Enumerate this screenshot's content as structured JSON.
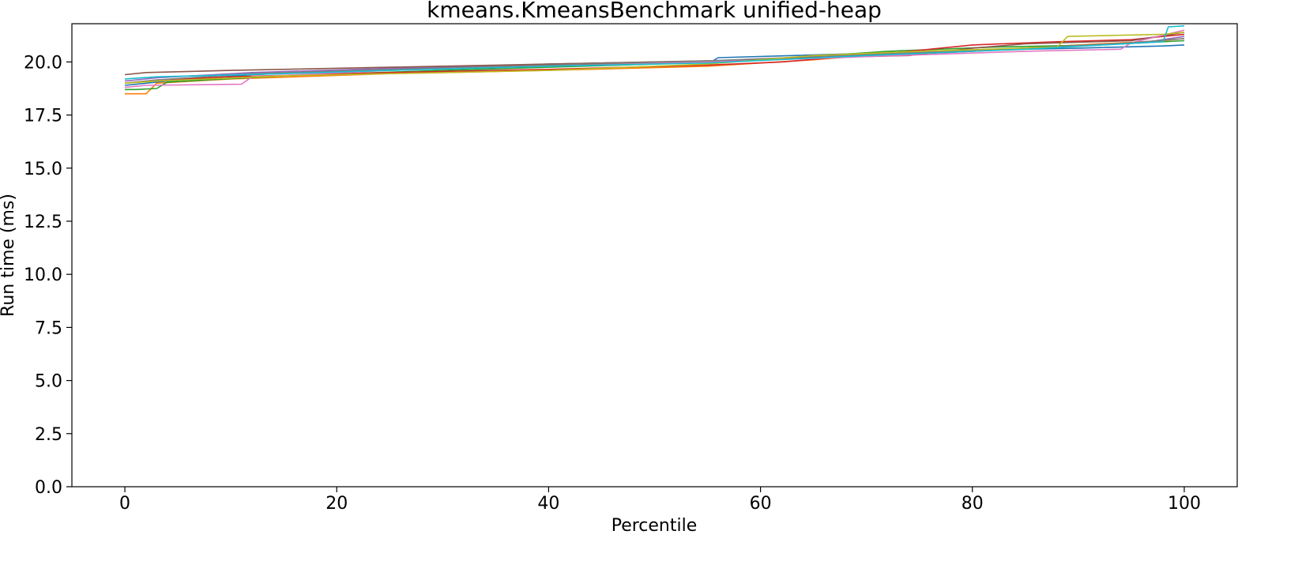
{
  "chart_data": {
    "type": "line",
    "title": "kmeans.KmeansBenchmark unified-heap",
    "xlabel": "Percentile",
    "ylabel": "Run time (ms)",
    "xlim": [
      -5,
      105
    ],
    "ylim": [
      0,
      21.8
    ],
    "xticks": [
      0,
      20,
      40,
      60,
      80,
      100
    ],
    "yticks": [
      0.0,
      2.5,
      5.0,
      7.5,
      10.0,
      12.5,
      15.0,
      17.5,
      20.0
    ],
    "ytick_labels": [
      "0.0",
      "2.5",
      "5.0",
      "7.5",
      "10.0",
      "12.5",
      "15.0",
      "17.5",
      "20.0"
    ],
    "xtick_labels": [
      "0",
      "20",
      "40",
      "60",
      "80",
      "100"
    ],
    "grid": false,
    "legend": "none",
    "series": [
      {
        "color": "#1f77b4",
        "x": [
          0,
          2,
          4,
          12,
          25,
          40,
          55.5,
          56,
          70,
          80,
          90,
          98,
          100
        ],
        "y": [
          18.9,
          19.0,
          19.1,
          19.4,
          19.65,
          19.9,
          20.05,
          20.2,
          20.4,
          20.55,
          20.65,
          20.75,
          20.8
        ]
      },
      {
        "color": "#ff7f0e",
        "x": [
          0,
          2,
          3,
          10,
          25,
          40,
          55,
          65,
          70,
          80,
          90,
          98,
          100
        ],
        "y": [
          18.5,
          18.5,
          19.0,
          19.2,
          19.45,
          19.6,
          19.8,
          20.1,
          20.3,
          20.5,
          20.8,
          21.0,
          21.1
        ]
      },
      {
        "color": "#2ca02c",
        "x": [
          0,
          1,
          3,
          4,
          15,
          30,
          50,
          60,
          72,
          82,
          92,
          100
        ],
        "y": [
          18.7,
          18.7,
          18.75,
          19.05,
          19.35,
          19.6,
          19.9,
          20.1,
          20.5,
          20.7,
          20.8,
          21.0
        ]
      },
      {
        "color": "#d62728",
        "x": [
          0,
          3,
          10,
          25,
          40,
          55,
          62,
          72,
          80,
          88,
          95,
          100
        ],
        "y": [
          19.0,
          19.15,
          19.3,
          19.5,
          19.65,
          19.85,
          20.0,
          20.4,
          20.8,
          20.95,
          21.05,
          21.3
        ]
      },
      {
        "color": "#9467bd",
        "x": [
          0,
          3,
          12,
          25,
          40,
          55,
          65,
          78,
          88,
          96,
          100
        ],
        "y": [
          19.1,
          19.25,
          19.5,
          19.7,
          19.85,
          20.0,
          20.2,
          20.45,
          20.7,
          20.9,
          21.2
        ]
      },
      {
        "color": "#8c564b",
        "x": [
          0,
          2,
          10,
          25,
          40,
          55,
          65,
          74,
          80,
          85,
          95,
          100
        ],
        "y": [
          19.4,
          19.5,
          19.6,
          19.75,
          19.9,
          20.05,
          20.2,
          20.3,
          20.65,
          20.85,
          21.0,
          21.4
        ]
      },
      {
        "color": "#e377c2",
        "x": [
          0,
          2,
          11,
          12,
          25,
          40,
          55,
          70,
          85,
          94,
          95,
          100
        ],
        "y": [
          18.8,
          18.9,
          18.95,
          19.3,
          19.6,
          19.8,
          20.0,
          20.25,
          20.5,
          20.6,
          20.9,
          21.5
        ]
      },
      {
        "color": "#7f7f7f",
        "x": [
          0,
          3,
          12,
          25,
          40,
          55,
          70,
          85,
          95,
          100
        ],
        "y": [
          19.0,
          19.15,
          19.45,
          19.65,
          19.85,
          20.05,
          20.35,
          20.65,
          20.9,
          21.1
        ]
      },
      {
        "color": "#bcbd22",
        "x": [
          0,
          3,
          15,
          25,
          40,
          55,
          65,
          75,
          88,
          89,
          98,
          100
        ],
        "y": [
          19.0,
          19.1,
          19.35,
          19.45,
          19.6,
          19.9,
          20.3,
          20.5,
          20.7,
          21.2,
          21.3,
          21.4
        ]
      },
      {
        "color": "#17becf",
        "x": [
          0,
          3,
          15,
          25,
          40,
          55,
          70,
          85,
          98,
          98.5,
          100
        ],
        "y": [
          19.2,
          19.3,
          19.45,
          19.6,
          19.8,
          19.95,
          20.3,
          20.6,
          20.95,
          21.65,
          21.7
        ]
      }
    ]
  }
}
